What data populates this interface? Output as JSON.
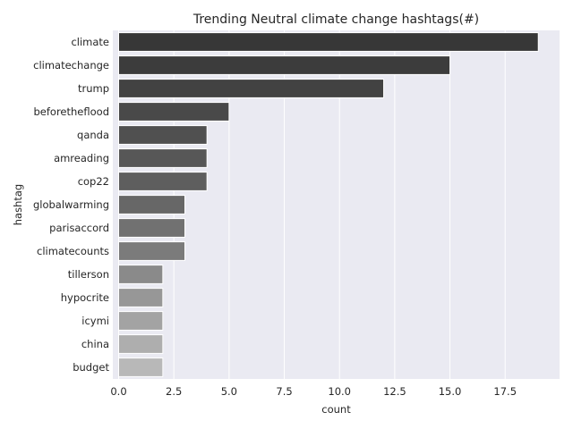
{
  "chart_data": {
    "type": "bar",
    "orientation": "horizontal",
    "title": "Trending Neutral climate change hashtags(#)",
    "xlabel": "count",
    "ylabel": "hashtag",
    "categories": [
      "climate",
      "climatechange",
      "trump",
      "beforetheflood",
      "qanda",
      "amreading",
      "cop22",
      "globalwarming",
      "parisaccord",
      "climatecounts",
      "tillerson",
      "hypocrite",
      "icymi",
      "china",
      "budget"
    ],
    "values": [
      19,
      15,
      12,
      5,
      4,
      4,
      4,
      3,
      3,
      3,
      2,
      2,
      2,
      2,
      2
    ],
    "colors": [
      "#373737",
      "#3c3c3c",
      "#424242",
      "#494949",
      "#505050",
      "#575757",
      "#5e5e5e",
      "#676767",
      "#717171",
      "#7b7b7b",
      "#8a8a8a",
      "#979797",
      "#a3a3a3",
      "#aeaeae",
      "#b8b8b8"
    ],
    "xlim": [
      0,
      20
    ],
    "xticks": [
      0,
      2.5,
      5,
      7.5,
      10,
      12.5,
      15,
      17.5
    ],
    "xtick_labels": [
      "0.0",
      "2.5",
      "5.0",
      "7.5",
      "10.0",
      "12.5",
      "15.0",
      "17.5"
    ],
    "grid": true,
    "background": "#eaeaf2",
    "grid_color": "#ffffff"
  }
}
